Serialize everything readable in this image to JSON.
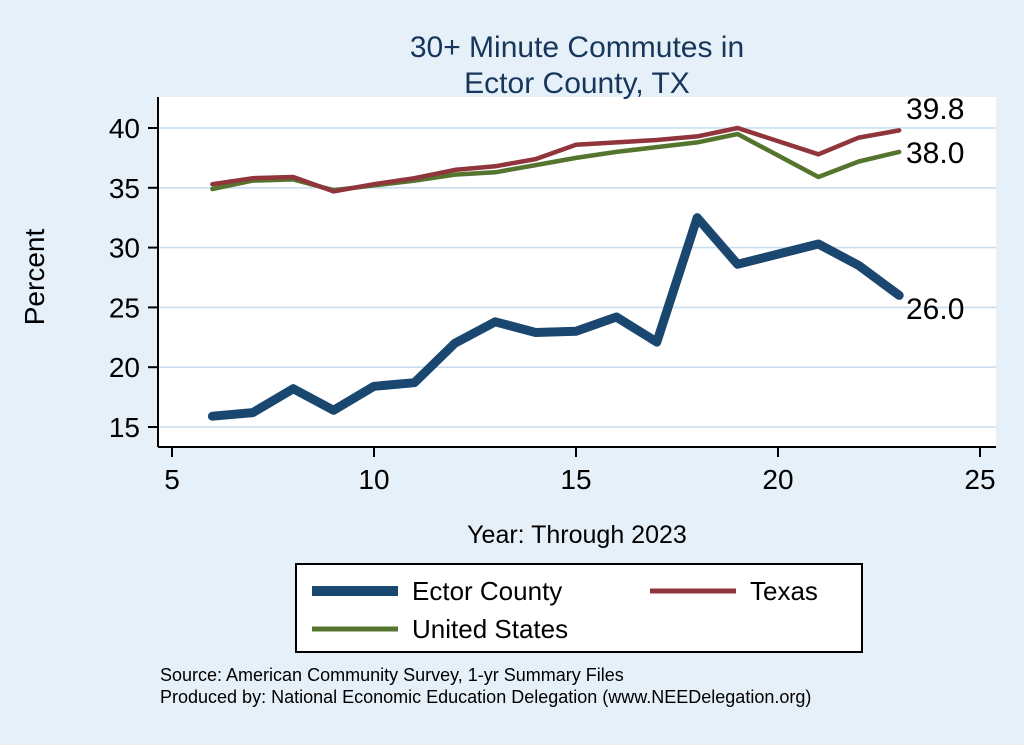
{
  "title": {
    "line1": "30+ Minute Commutes in",
    "line2": "Ector County, TX"
  },
  "axes": {
    "ylabel": "Percent",
    "xlabel": "Year: Through 2023"
  },
  "legend": {
    "items": [
      {
        "label": "Ector County",
        "color": "#1a476f"
      },
      {
        "label": "Texas",
        "color": "#90353b"
      },
      {
        "label": "United States",
        "color": "#55752f"
      }
    ]
  },
  "footer": {
    "source": "Source: American Community Survey, 1-yr Summary Files",
    "produced_by": "Produced by: National Economic Education Delegation (www.NEEDelegation.org)"
  },
  "colors": {
    "background": "#e6f0f8",
    "plot_bg": "#ffffff",
    "grid": "#c9dff0",
    "title": "#16365c"
  },
  "chart_data": {
    "type": "line",
    "title": "30+ Minute Commutes in Ector County, TX",
    "xlabel": "Year: Through 2023",
    "ylabel": "Percent",
    "xlim": [
      4.7,
      25.4
    ],
    "ylim": [
      13.3,
      42.6
    ],
    "xticks": [
      5,
      10,
      15,
      20,
      25
    ],
    "yticks": [
      15,
      20,
      25,
      30,
      35,
      40
    ],
    "grid": "horizontal-only",
    "legend_position": "bottom",
    "series": [
      {
        "name": "Ector County",
        "color": "#1a476f",
        "end_label": "26.0",
        "points": [
          [
            6,
            15.9
          ],
          [
            7,
            16.2
          ],
          [
            8,
            18.2
          ],
          [
            9,
            16.4
          ],
          [
            10,
            18.4
          ],
          [
            11,
            18.7
          ],
          [
            12,
            22.0
          ],
          [
            13,
            23.8
          ],
          [
            14,
            22.9
          ],
          [
            15,
            23.0
          ],
          [
            16,
            24.2
          ],
          [
            17,
            22.1
          ],
          [
            18,
            32.5
          ],
          [
            19,
            28.6
          ],
          [
            21,
            30.3
          ],
          [
            22,
            28.5
          ],
          [
            23,
            26.0
          ]
        ]
      },
      {
        "name": "Texas",
        "color": "#90353b",
        "end_label": "39.8",
        "points": [
          [
            6,
            35.3
          ],
          [
            7,
            35.8
          ],
          [
            8,
            35.9
          ],
          [
            9,
            34.7
          ],
          [
            10,
            35.3
          ],
          [
            11,
            35.8
          ],
          [
            12,
            36.5
          ],
          [
            13,
            36.8
          ],
          [
            14,
            37.4
          ],
          [
            15,
            38.6
          ],
          [
            16,
            38.8
          ],
          [
            17,
            39.0
          ],
          [
            18,
            39.3
          ],
          [
            19,
            40.0
          ],
          [
            21,
            37.8
          ],
          [
            22,
            39.2
          ],
          [
            23,
            39.8
          ]
        ]
      },
      {
        "name": "United States",
        "color": "#55752f",
        "end_label": "38.0",
        "points": [
          [
            6,
            34.9
          ],
          [
            7,
            35.6
          ],
          [
            8,
            35.7
          ],
          [
            9,
            34.8
          ],
          [
            10,
            35.2
          ],
          [
            11,
            35.6
          ],
          [
            12,
            36.1
          ],
          [
            13,
            36.3
          ],
          [
            14,
            36.9
          ],
          [
            15,
            37.5
          ],
          [
            16,
            38.0
          ],
          [
            17,
            38.4
          ],
          [
            18,
            38.8
          ],
          [
            19,
            39.5
          ],
          [
            21,
            35.9
          ],
          [
            22,
            37.2
          ],
          [
            23,
            38.0
          ]
        ]
      }
    ]
  }
}
